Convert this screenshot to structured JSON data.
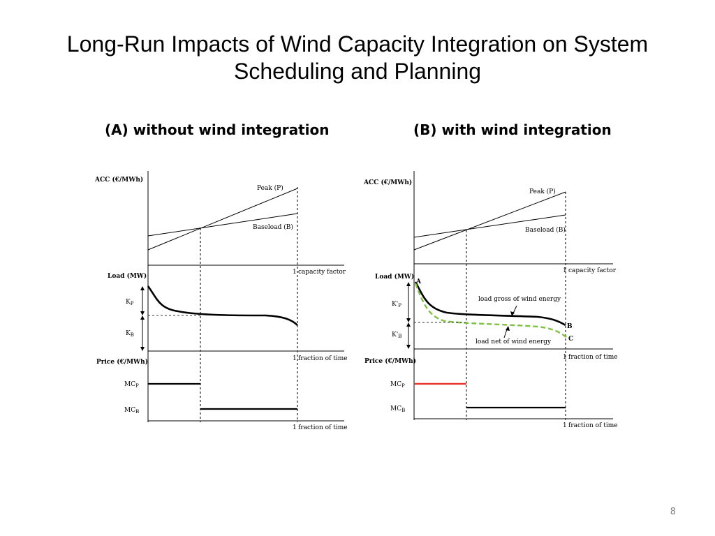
{
  "title": "Long-Run Impacts of Wind Capacity Integration on System Scheduling and Planning",
  "page_number": "8",
  "colors": {
    "curve": "#000000",
    "wind_net": "#7dc242",
    "peak_price": "#e8382b",
    "guide": "#333333"
  },
  "panel_a": {
    "heading": "(A) without wind integration",
    "acc_axis": "ACC (€/MWh)",
    "peak_label": "Peak (P)",
    "baseload_label": "Baseload (B)",
    "one_label": "1",
    "capacity_factor": "capacity factor",
    "load_axis": "Load (MW)",
    "kp": "K",
    "kp_sub": "P",
    "kb": "K",
    "kb_sub": "B",
    "fraction_of_time": "fraction of time",
    "price_axis": "Price (€/MWh)",
    "mcp": "MC",
    "mcp_sub": "P",
    "mcb": "MC",
    "mcb_sub": "B"
  },
  "panel_b": {
    "heading": "(B) with wind integration",
    "acc_axis": "ACC (€/MWh)",
    "peak_label": "Peak (P)",
    "baseload_label": "Baseload (B)",
    "one_label": "1",
    "capacity_factor": "capacity factor",
    "load_axis": "Load (MW)",
    "kp": "K'",
    "kp_sub": "P",
    "kb": "K'",
    "kb_sub": "B",
    "point_a": "A",
    "point_b": "B",
    "point_c": "C",
    "load_gross": "load gross of wind energy",
    "load_net": "load net of wind energy",
    "fraction_of_time": "fraction of time",
    "price_axis": "Price (€/MWh)",
    "mcp": "MC",
    "mcp_sub": "P",
    "mcb": "MC",
    "mcb_sub": "B"
  }
}
